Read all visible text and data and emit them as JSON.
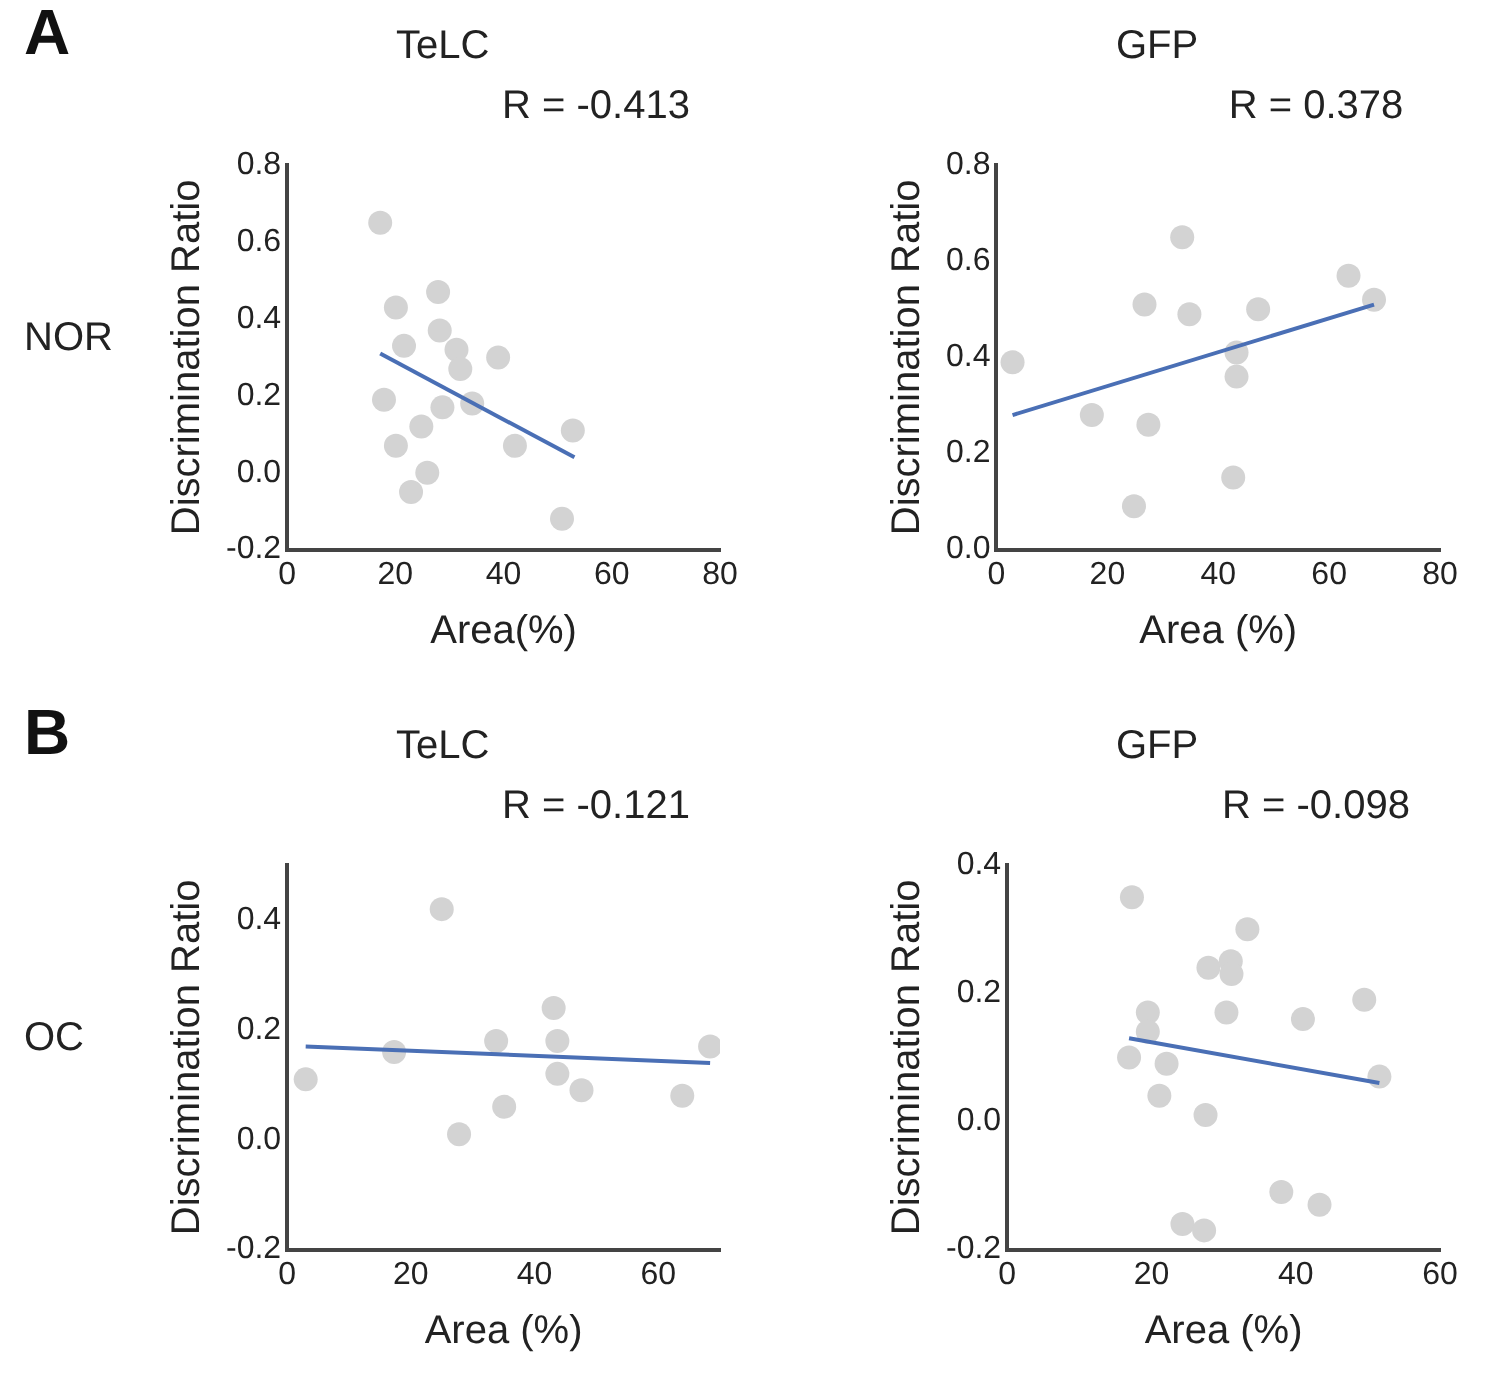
{
  "chart_data": [
    {
      "type": "scatter",
      "title": "TeLC",
      "subtitle": "R = -0.413",
      "xlabel": "Area(%)",
      "ylabel": "Discrimination Ratio",
      "annotations": [
        "A",
        "NOR"
      ],
      "xlim": [
        0,
        80
      ],
      "xticks": [
        0,
        20,
        40,
        60,
        80
      ],
      "ylim": [
        -0.2,
        0.8
      ],
      "yticks": [
        {
          "value": -0.2,
          "label": "-0.2"
        },
        {
          "value": 0,
          "label": "0.0"
        },
        {
          "value": 0.2,
          "label": "0.2"
        },
        {
          "value": 0.4,
          "label": "0.4"
        },
        {
          "value": 0.6,
          "label": "0.6"
        },
        {
          "value": 0.8,
          "label": "0.8"
        }
      ],
      "grid": false,
      "legend": false,
      "series": [
        {
          "marker": "circle",
          "color": "#d3d3d3",
          "x": [
            17.2,
            20.1,
            27.9,
            21.6,
            28.2,
            31.3,
            39.0,
            32.0,
            17.9,
            34.2,
            28.7,
            24.8,
            52.8,
            20.1,
            42.1,
            25.9,
            22.9,
            50.8
          ],
          "values": [
            0.65,
            0.43,
            0.47,
            0.33,
            0.37,
            0.32,
            0.3,
            0.27,
            0.19,
            0.18,
            0.17,
            0.12,
            0.11,
            0.07,
            0.07,
            0.0,
            -0.05,
            -0.12
          ]
        },
        {
          "type": "line",
          "color": "#4a6fb5",
          "x": [
            17.2,
            53.1
          ],
          "values": [
            0.31,
            0.04
          ]
        }
      ]
    },
    {
      "type": "scatter",
      "title": "GFP",
      "subtitle": "R = 0.378",
      "xlabel": "Area (%)",
      "ylabel": "Discrimination Ratio",
      "xlim": [
        0,
        80
      ],
      "xticks": [
        0,
        20,
        40,
        60,
        80
      ],
      "ylim": [
        0,
        0.8
      ],
      "yticks": [
        {
          "value": 0,
          "label": "0.0"
        },
        {
          "value": 0.2,
          "label": "0.2"
        },
        {
          "value": 0.4,
          "label": "0.4"
        },
        {
          "value": 0.6,
          "label": "0.6"
        },
        {
          "value": 0.8,
          "label": "0.8"
        }
      ],
      "grid": false,
      "legend": false,
      "series": [
        {
          "marker": "circle",
          "color": "#d3d3d3",
          "x": [
            2.9,
            17.2,
            26.7,
            27.4,
            24.8,
            33.5,
            34.8,
            47.2,
            43.3,
            43.3,
            42.7,
            63.5,
            68.1
          ],
          "values": [
            0.39,
            0.28,
            0.51,
            0.26,
            0.09,
            0.65,
            0.49,
            0.5,
            0.41,
            0.36,
            0.15,
            0.57,
            0.52
          ]
        },
        {
          "type": "line",
          "color": "#4a6fb5",
          "x": [
            2.9,
            68.1
          ],
          "values": [
            0.28,
            0.51
          ]
        }
      ]
    },
    {
      "type": "scatter",
      "title": "TeLC",
      "subtitle": "R = -0.121",
      "xlabel": "Area (%)",
      "ylabel": "Discrimination Ratio",
      "annotations": [
        "B",
        "OC"
      ],
      "xlim": [
        0,
        70
      ],
      "xticks": [
        0,
        20,
        40,
        60
      ],
      "ylim": [
        -0.2,
        0.5
      ],
      "yticks": [
        {
          "value": -0.2,
          "label": "-0.2"
        },
        {
          "value": 0,
          "label": "0.0"
        },
        {
          "value": 0.2,
          "label": "0.2"
        },
        {
          "value": 0.4,
          "label": "0.4"
        }
      ],
      "grid": false,
      "legend": false,
      "series": [
        {
          "marker": "circle",
          "color": "#d3d3d3",
          "x": [
            3.0,
            17.3,
            25.0,
            27.8,
            33.8,
            35.1,
            43.1,
            43.7,
            43.7,
            47.6,
            63.9,
            68.4
          ],
          "values": [
            0.11,
            0.16,
            0.42,
            0.01,
            0.18,
            0.06,
            0.24,
            0.18,
            0.12,
            0.09,
            0.08,
            0.17
          ]
        },
        {
          "type": "line",
          "color": "#4a6fb5",
          "x": [
            3.0,
            68.4
          ],
          "values": [
            0.17,
            0.14
          ]
        }
      ]
    },
    {
      "type": "scatter",
      "title": "GFP",
      "subtitle": "R = -0.098",
      "xlabel": "Area (%)",
      "ylabel": "Discrimination Ratio",
      "xlim": [
        0,
        60
      ],
      "xticks": [
        0,
        20,
        40,
        60
      ],
      "ylim": [
        -0.2,
        0.4
      ],
      "yticks": [
        {
          "value": -0.2,
          "label": "-0.2"
        },
        {
          "value": 0,
          "label": "0.0"
        },
        {
          "value": 0.2,
          "label": "0.2"
        },
        {
          "value": 0.4,
          "label": "0.4"
        }
      ],
      "grid": false,
      "legend": false,
      "series": [
        {
          "marker": "circle",
          "color": "#d3d3d3",
          "x": [
            17.3,
            33.3,
            27.9,
            31.0,
            31.1,
            19.5,
            30.4,
            41.0,
            49.5,
            19.5,
            16.9,
            22.1,
            21.1,
            27.5,
            51.6,
            38.0,
            43.3,
            24.3,
            27.3
          ],
          "values": [
            0.35,
            0.3,
            0.24,
            0.25,
            0.23,
            0.17,
            0.17,
            0.16,
            0.19,
            0.14,
            0.1,
            0.09,
            0.04,
            0.01,
            0.07,
            -0.11,
            -0.13,
            -0.16,
            -0.17
          ]
        },
        {
          "type": "line",
          "color": "#4a6fb5",
          "x": [
            16.9,
            51.6
          ],
          "values": [
            0.13,
            0.06
          ]
        }
      ]
    }
  ]
}
